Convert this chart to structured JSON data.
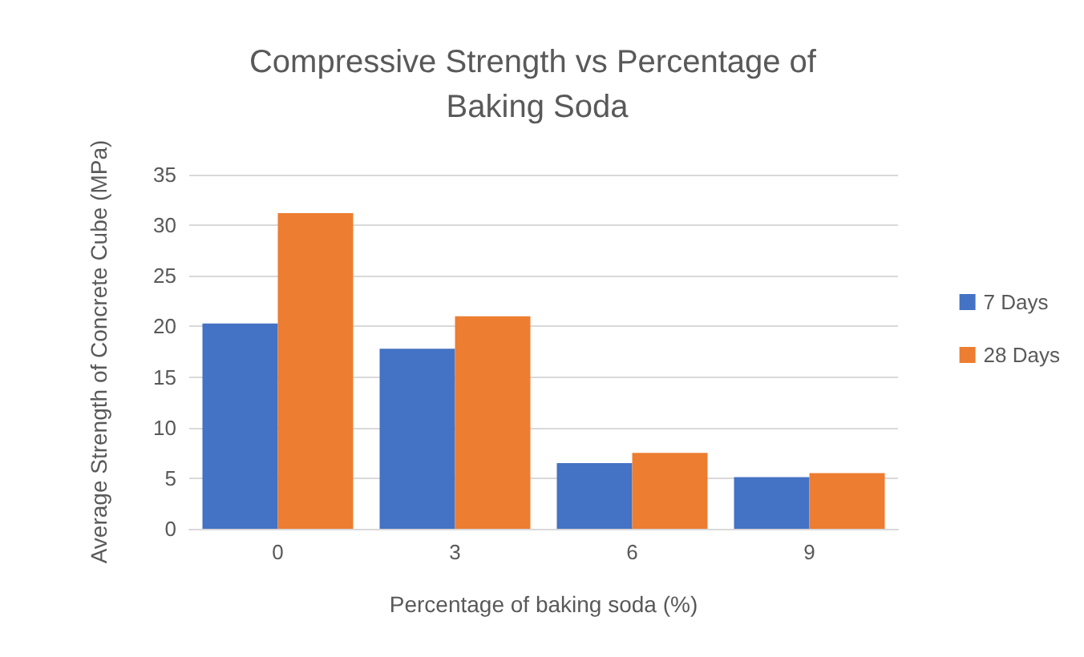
{
  "chart_data": {
    "type": "bar",
    "title": "Compressive Strength vs Percentage of Baking Soda",
    "xlabel": "Percentage of baking soda (%)",
    "ylabel": "Average Strength of Concrete Cube (MPa)",
    "categories": [
      "0",
      "3",
      "6",
      "9"
    ],
    "series": [
      {
        "name": "7 Days",
        "color": "#4472c4",
        "values": [
          20.3,
          17.8,
          6.5,
          5.1
        ]
      },
      {
        "name": "28 Days",
        "color": "#ed7d31",
        "values": [
          31.2,
          21.0,
          7.5,
          5.5
        ]
      }
    ],
    "ylim": [
      0,
      35
    ],
    "yticks": [
      0,
      5,
      10,
      15,
      20,
      25,
      30,
      35
    ],
    "grid": "y",
    "legend": "right"
  }
}
